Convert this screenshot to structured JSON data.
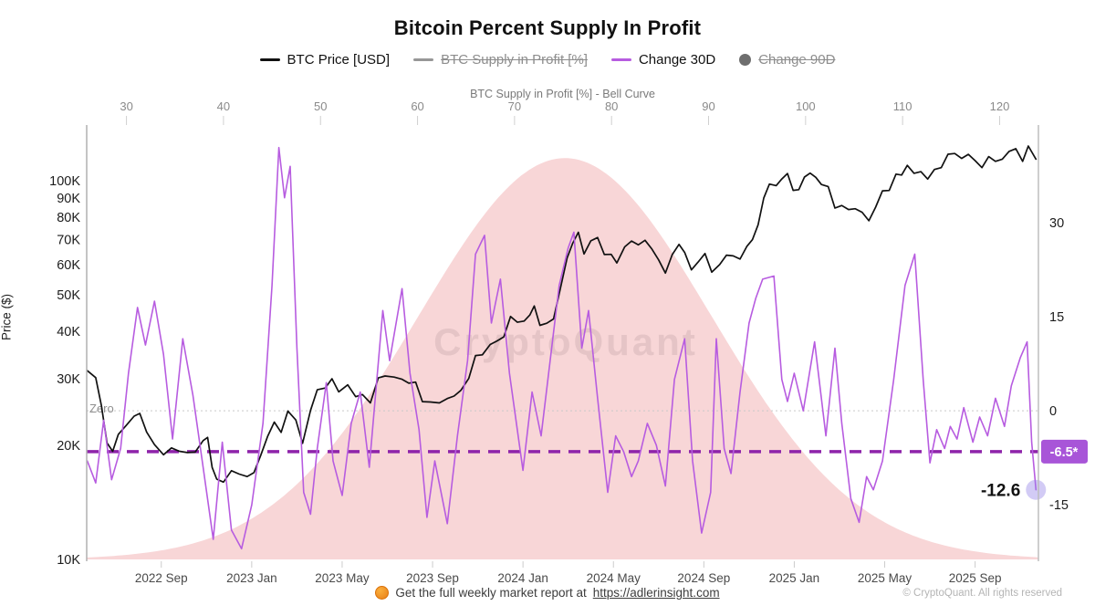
{
  "title": "Bitcoin Percent Supply In Profit",
  "legend": {
    "items": [
      {
        "label": "BTC Price [USD]",
        "swatch": "line",
        "color": "#111111",
        "disabled": false
      },
      {
        "label": "BTC Supply in Profit [%]",
        "swatch": "line",
        "color": "#979797",
        "disabled": true
      },
      {
        "label": "Change 30D",
        "swatch": "line",
        "color": "#b75ce0",
        "disabled": false
      },
      {
        "label": "Change 90D",
        "swatch": "dot",
        "color": "#6e6e6e",
        "disabled": true
      }
    ]
  },
  "watermark": "CryptoQuant",
  "footer": {
    "report_prefix": "Get the full weekly market report at",
    "report_link": "https://adlerinsight.com",
    "copyright": "© CryptoQuant. All rights reserved"
  },
  "chart_data": {
    "type": "line",
    "title": "Bitcoin Percent Supply In Profit",
    "top_axis": {
      "title": "BTC Supply in Profit [%] - Bell Curve",
      "ticks": [
        30,
        40,
        50,
        60,
        70,
        80,
        90,
        100,
        110,
        120
      ],
      "range": [
        25.9,
        124.0
      ]
    },
    "left_axis": {
      "title": "Price ($)",
      "scale": "log",
      "ticks": [
        {
          "v": 10000,
          "label": "10K"
        },
        {
          "v": 20000,
          "label": "20K"
        },
        {
          "v": 30000,
          "label": "30K"
        },
        {
          "v": 40000,
          "label": "40K"
        },
        {
          "v": 50000,
          "label": "50K"
        },
        {
          "v": 60000,
          "label": "60K"
        },
        {
          "v": 70000,
          "label": "70K"
        },
        {
          "v": 80000,
          "label": "80K"
        },
        {
          "v": 90000,
          "label": "90K"
        },
        {
          "v": 100000,
          "label": "100K"
        }
      ],
      "range": [
        9890,
        140300
      ]
    },
    "right_axis": {
      "ticks": [
        30,
        15,
        0,
        -15
      ],
      "range": [
        -24,
        45.6
      ]
    },
    "bottom_axis": {
      "unit": "months since 2022-06",
      "range": [
        -0.3,
        41.8
      ],
      "ticks": [
        {
          "m": 3,
          "label": "2022 Sep"
        },
        {
          "m": 7,
          "label": "2023 Jan"
        },
        {
          "m": 11,
          "label": "2023 May"
        },
        {
          "m": 15,
          "label": "2023 Sep"
        },
        {
          "m": 19,
          "label": "2024 Jan"
        },
        {
          "m": 23,
          "label": "2024 May"
        },
        {
          "m": 27,
          "label": "2024 Sep"
        },
        {
          "m": 31,
          "label": "2025 Jan"
        },
        {
          "m": 35,
          "label": "2025 May"
        },
        {
          "m": 39,
          "label": "2025 Sep"
        }
      ]
    },
    "bell_curve": {
      "center": 75.2,
      "sigma": 15.1,
      "height_frac": 0.92,
      "color": "#f8d6d7"
    },
    "zero_line": {
      "value": 0,
      "label": "Zero",
      "color": "#c9c9c9"
    },
    "dashed_line": {
      "value": -6.5,
      "label": "-6.5*",
      "line_color": "#8e24aa",
      "badge_color": "#a855d8"
    },
    "annotation": {
      "label": "-12.6",
      "value": -12.6,
      "dot_color": "rgba(147,130,230,0.42)"
    },
    "series": [
      {
        "name": "BTC Price [USD]",
        "axis": "price",
        "color": "#111111",
        "width": 1.7,
        "points": [
          [
            -0.27,
            31500
          ],
          [
            0.1,
            30200
          ],
          [
            0.35,
            25500
          ],
          [
            0.6,
            20300
          ],
          [
            0.85,
            19300
          ],
          [
            1.1,
            21400
          ],
          [
            1.45,
            22600
          ],
          [
            1.8,
            23900
          ],
          [
            2.05,
            24300
          ],
          [
            2.35,
            21700
          ],
          [
            2.7,
            20100
          ],
          [
            3.1,
            18900
          ],
          [
            3.45,
            19700
          ],
          [
            3.8,
            19300
          ],
          [
            4.15,
            19150
          ],
          [
            4.5,
            19200
          ],
          [
            4.85,
            20600
          ],
          [
            5.05,
            21000
          ],
          [
            5.25,
            17500
          ],
          [
            5.45,
            16300
          ],
          [
            5.75,
            16000
          ],
          [
            6.1,
            17150
          ],
          [
            6.45,
            16800
          ],
          [
            6.8,
            16550
          ],
          [
            7.1,
            16950
          ],
          [
            7.4,
            18850
          ],
          [
            7.7,
            21100
          ],
          [
            8.0,
            23050
          ],
          [
            8.3,
            21650
          ],
          [
            8.6,
            24650
          ],
          [
            8.95,
            23350
          ],
          [
            9.25,
            20250
          ],
          [
            9.6,
            24750
          ],
          [
            9.9,
            28050
          ],
          [
            10.25,
            28350
          ],
          [
            10.55,
            30000
          ],
          [
            10.85,
            27700
          ],
          [
            11.25,
            28900
          ],
          [
            11.6,
            26900
          ],
          [
            11.9,
            27250
          ],
          [
            12.25,
            25900
          ],
          [
            12.6,
            30150
          ],
          [
            12.9,
            30500
          ],
          [
            13.3,
            30300
          ],
          [
            13.65,
            29900
          ],
          [
            13.95,
            29200
          ],
          [
            14.25,
            29400
          ],
          [
            14.55,
            26100
          ],
          [
            14.9,
            26050
          ],
          [
            15.3,
            25900
          ],
          [
            15.65,
            26600
          ],
          [
            15.95,
            27000
          ],
          [
            16.25,
            27950
          ],
          [
            16.6,
            30050
          ],
          [
            16.9,
            34550
          ],
          [
            17.2,
            34700
          ],
          [
            17.55,
            36950
          ],
          [
            17.85,
            37750
          ],
          [
            18.15,
            38700
          ],
          [
            18.45,
            43800
          ],
          [
            18.75,
            42300
          ],
          [
            19.05,
            42600
          ],
          [
            19.3,
            44200
          ],
          [
            19.5,
            46700
          ],
          [
            19.75,
            41500
          ],
          [
            20.05,
            42050
          ],
          [
            20.35,
            43150
          ],
          [
            20.65,
            51800
          ],
          [
            20.95,
            62500
          ],
          [
            21.2,
            68350
          ],
          [
            21.45,
            73100
          ],
          [
            21.7,
            64050
          ],
          [
            22.0,
            69400
          ],
          [
            22.3,
            70800
          ],
          [
            22.6,
            63850
          ],
          [
            22.9,
            63900
          ],
          [
            23.15,
            60650
          ],
          [
            23.5,
            66900
          ],
          [
            23.8,
            69300
          ],
          [
            24.1,
            67700
          ],
          [
            24.4,
            69600
          ],
          [
            24.7,
            66000
          ],
          [
            25.0,
            61800
          ],
          [
            25.3,
            57050
          ],
          [
            25.6,
            63800
          ],
          [
            25.9,
            67900
          ],
          [
            26.15,
            64650
          ],
          [
            26.45,
            58150
          ],
          [
            26.75,
            61000
          ],
          [
            27.05,
            64250
          ],
          [
            27.35,
            57350
          ],
          [
            27.7,
            60050
          ],
          [
            28.0,
            63600
          ],
          [
            28.3,
            63300
          ],
          [
            28.6,
            62100
          ],
          [
            28.9,
            67050
          ],
          [
            29.15,
            69900
          ],
          [
            29.4,
            76500
          ],
          [
            29.65,
            90000
          ],
          [
            29.9,
            98000
          ],
          [
            30.2,
            97050
          ],
          [
            30.45,
            101100
          ],
          [
            30.7,
            104500
          ],
          [
            30.95,
            94300
          ],
          [
            31.2,
            94700
          ],
          [
            31.45,
            102250
          ],
          [
            31.7,
            104750
          ],
          [
            31.95,
            102100
          ],
          [
            32.2,
            97700
          ],
          [
            32.5,
            96550
          ],
          [
            32.8,
            84700
          ],
          [
            33.1,
            86000
          ],
          [
            33.4,
            83950
          ],
          [
            33.7,
            84350
          ],
          [
            34.0,
            82550
          ],
          [
            34.3,
            78400
          ],
          [
            34.6,
            85150
          ],
          [
            34.9,
            94050
          ],
          [
            35.2,
            94250
          ],
          [
            35.5,
            104100
          ],
          [
            35.75,
            103500
          ],
          [
            36.0,
            109800
          ],
          [
            36.3,
            104600
          ],
          [
            36.6,
            105650
          ],
          [
            36.9,
            101000
          ],
          [
            37.2,
            107100
          ],
          [
            37.5,
            108250
          ],
          [
            37.8,
            117500
          ],
          [
            38.1,
            118000
          ],
          [
            38.4,
            114500
          ],
          [
            38.7,
            117400
          ],
          [
            39.0,
            113000
          ],
          [
            39.3,
            108250
          ],
          [
            39.6,
            115800
          ],
          [
            39.9,
            112500
          ],
          [
            40.2,
            114000
          ],
          [
            40.5,
            119500
          ],
          [
            40.8,
            121500
          ],
          [
            41.1,
            112500
          ],
          [
            41.35,
            123500
          ],
          [
            41.69,
            114000
          ]
        ]
      },
      {
        "name": "Change 30D",
        "axis": "change",
        "color": "#b75ce0",
        "width": 1.6,
        "points": [
          [
            -0.27,
            -8
          ],
          [
            0.1,
            -11.5
          ],
          [
            0.45,
            -1.5
          ],
          [
            0.8,
            -11
          ],
          [
            1.2,
            -6
          ],
          [
            1.55,
            6
          ],
          [
            1.95,
            16.5
          ],
          [
            2.3,
            10.5
          ],
          [
            2.7,
            17.5
          ],
          [
            3.1,
            9
          ],
          [
            3.5,
            -4.5
          ],
          [
            3.95,
            11.5
          ],
          [
            4.4,
            2.5
          ],
          [
            4.85,
            -9
          ],
          [
            5.3,
            -20.5
          ],
          [
            5.7,
            -5
          ],
          [
            6.1,
            -19
          ],
          [
            6.55,
            -22
          ],
          [
            7.0,
            -15
          ],
          [
            7.5,
            -2
          ],
          [
            7.9,
            20
          ],
          [
            8.2,
            42
          ],
          [
            8.45,
            34
          ],
          [
            8.7,
            39
          ],
          [
            9.0,
            10
          ],
          [
            9.3,
            -13
          ],
          [
            9.6,
            -16.5
          ],
          [
            9.9,
            -6
          ],
          [
            10.3,
            4.5
          ],
          [
            10.6,
            -8
          ],
          [
            11.0,
            -13.5
          ],
          [
            11.4,
            -2
          ],
          [
            11.8,
            3
          ],
          [
            12.2,
            -9
          ],
          [
            12.8,
            16
          ],
          [
            13.1,
            8
          ],
          [
            13.65,
            19.5
          ],
          [
            14.0,
            6
          ],
          [
            14.4,
            -3
          ],
          [
            14.75,
            -17
          ],
          [
            15.1,
            -8
          ],
          [
            15.65,
            -18
          ],
          [
            16.1,
            -4
          ],
          [
            16.55,
            8
          ],
          [
            16.9,
            25
          ],
          [
            17.3,
            28
          ],
          [
            17.6,
            14
          ],
          [
            18.0,
            21
          ],
          [
            18.4,
            6
          ],
          [
            19.0,
            -9.5
          ],
          [
            19.4,
            3
          ],
          [
            19.8,
            -4
          ],
          [
            20.2,
            8
          ],
          [
            20.6,
            20
          ],
          [
            21.0,
            26
          ],
          [
            21.25,
            28.5
          ],
          [
            21.6,
            10
          ],
          [
            21.9,
            16
          ],
          [
            22.3,
            2
          ],
          [
            22.75,
            -13
          ],
          [
            23.1,
            -4
          ],
          [
            23.45,
            -6.5
          ],
          [
            23.8,
            -10.5
          ],
          [
            24.1,
            -8
          ],
          [
            24.5,
            -2
          ],
          [
            24.9,
            -5.5
          ],
          [
            25.3,
            -12
          ],
          [
            25.7,
            5
          ],
          [
            26.15,
            11.5
          ],
          [
            26.5,
            -8
          ],
          [
            26.9,
            -19.5
          ],
          [
            27.3,
            -13
          ],
          [
            27.55,
            11.5
          ],
          [
            27.9,
            -6
          ],
          [
            28.2,
            -10
          ],
          [
            28.6,
            3
          ],
          [
            29.0,
            14
          ],
          [
            29.3,
            18
          ],
          [
            29.6,
            21
          ],
          [
            30.1,
            21.5
          ],
          [
            30.45,
            5
          ],
          [
            30.7,
            1.5
          ],
          [
            31.0,
            6
          ],
          [
            31.4,
            0
          ],
          [
            31.9,
            11
          ],
          [
            32.4,
            -4
          ],
          [
            32.8,
            10
          ],
          [
            33.1,
            -2
          ],
          [
            33.5,
            -14
          ],
          [
            33.87,
            -17.8
          ],
          [
            34.2,
            -10.5
          ],
          [
            34.5,
            -12.6
          ],
          [
            34.9,
            -8
          ],
          [
            35.4,
            5
          ],
          [
            35.9,
            20
          ],
          [
            36.33,
            25
          ],
          [
            36.7,
            5
          ],
          [
            37.0,
            -8.3
          ],
          [
            37.3,
            -3
          ],
          [
            37.65,
            -6
          ],
          [
            37.9,
            -2.5
          ],
          [
            38.2,
            -4.5
          ],
          [
            38.5,
            0.5
          ],
          [
            38.9,
            -5
          ],
          [
            39.2,
            -1
          ],
          [
            39.55,
            -4
          ],
          [
            39.9,
            2
          ],
          [
            40.3,
            -2.5
          ],
          [
            40.6,
            4
          ],
          [
            41.0,
            8.5
          ],
          [
            41.3,
            11
          ],
          [
            41.5,
            -5
          ],
          [
            41.69,
            -12.6
          ]
        ]
      }
    ]
  }
}
